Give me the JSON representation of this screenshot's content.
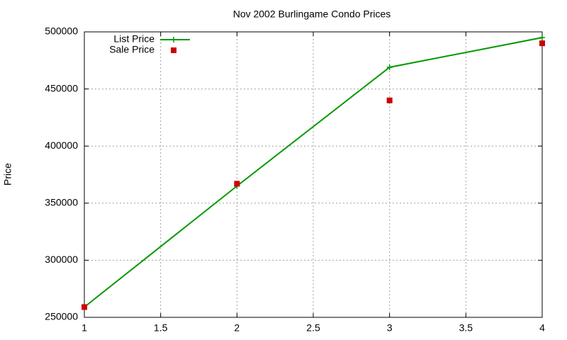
{
  "chart_data": {
    "type": "line",
    "title": "Nov 2002 Burlingame Condo Prices",
    "y_label": "Price",
    "x": [
      1,
      2,
      3,
      4
    ],
    "series": [
      {
        "name": "List Price",
        "color": "#009900",
        "style": "linespoints",
        "values": [
          259000,
          365000,
          469000,
          495000
        ]
      },
      {
        "name": "Sale Price",
        "color": "#cc0000",
        "style": "points",
        "values": [
          259000,
          367000,
          440000,
          490000
        ]
      }
    ],
    "xlim": [
      1,
      4
    ],
    "xticks": [
      1,
      1.5,
      2,
      2.5,
      3,
      3.5,
      4
    ],
    "ylim": [
      250000,
      500000
    ],
    "yticks": [
      250000,
      300000,
      350000,
      400000,
      450000,
      500000
    ],
    "grid": true,
    "legend": "top-left"
  }
}
